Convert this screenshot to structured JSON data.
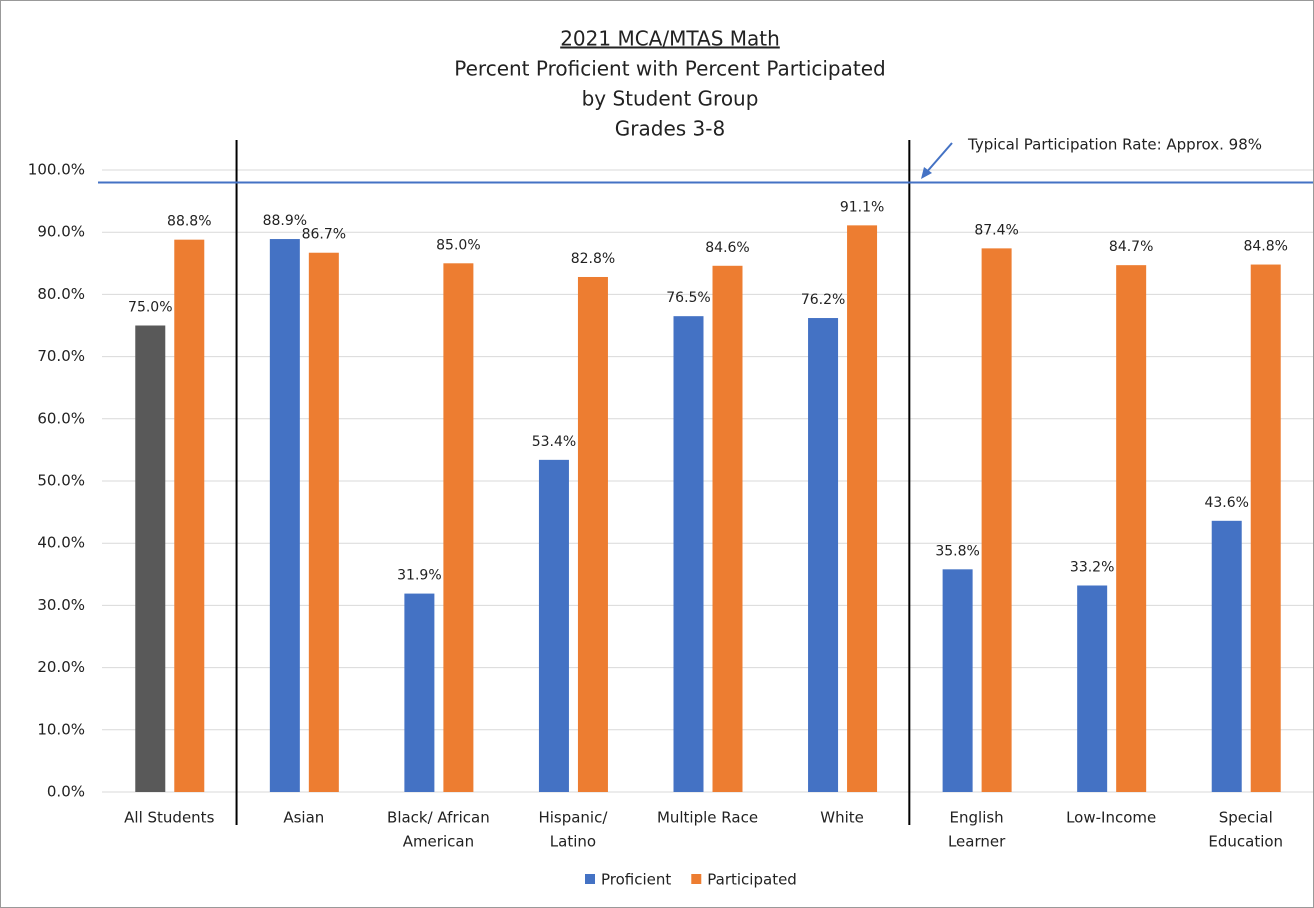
{
  "chart_data": {
    "type": "bar",
    "title": "2021 MCA/MTAS Math",
    "subtitle": [
      "Percent Proficient with Percent Participated",
      "by Student Group",
      "Grades 3-8"
    ],
    "categories": [
      [
        "All Students"
      ],
      [
        "Asian"
      ],
      [
        "Black/ African",
        "American"
      ],
      [
        "Hispanic/",
        "Latino"
      ],
      [
        "Multiple Race"
      ],
      [
        "White"
      ],
      [
        "English",
        "Learner"
      ],
      [
        "Low-Income"
      ],
      [
        "Special",
        "Education"
      ]
    ],
    "series": [
      {
        "name": "Proficient",
        "color": "#4472c4",
        "point_colors": [
          "#595959",
          "#4472c4",
          "#4472c4",
          "#4472c4",
          "#4472c4",
          "#4472c4",
          "#4472c4",
          "#4472c4",
          "#4472c4"
        ],
        "values": [
          75.0,
          88.9,
          31.9,
          53.4,
          76.5,
          76.2,
          35.8,
          33.2,
          43.6
        ],
        "value_labels": [
          "75.0%",
          "88.9%",
          "31.9%",
          "53.4%",
          "76.5%",
          "76.2%",
          "35.8%",
          "33.2%",
          "43.6%"
        ]
      },
      {
        "name": "Participated",
        "color": "#ed7d31",
        "values": [
          88.8,
          86.7,
          85.0,
          82.8,
          84.6,
          91.1,
          87.4,
          84.7,
          84.8
        ],
        "value_labels": [
          "88.8%",
          "86.7%",
          "85.0%",
          "82.8%",
          "84.6%",
          "91.1%",
          "87.4%",
          "84.7%",
          "84.8%"
        ]
      }
    ],
    "ylim": [
      0,
      100
    ],
    "yticks": [
      {
        "value": 0,
        "label": "0.0%"
      },
      {
        "value": 10,
        "label": "10.0%"
      },
      {
        "value": 20,
        "label": "20.0%"
      },
      {
        "value": 30,
        "label": "30.0%"
      },
      {
        "value": 40,
        "label": "40.0%"
      },
      {
        "value": 50,
        "label": "50.0%"
      },
      {
        "value": 60,
        "label": "60.0%"
      },
      {
        "value": 70,
        "label": "70.0%"
      },
      {
        "value": 80,
        "label": "80.0%"
      },
      {
        "value": 90,
        "label": "90.0%"
      },
      {
        "value": 100,
        "label": "100.0%"
      }
    ],
    "grid": true,
    "reference_line": {
      "value": 98,
      "label": "Typical Participation Rate: Approx. 98%",
      "color": "#4472c4"
    },
    "group_separators_after": [
      0,
      5
    ],
    "legend": "bottom"
  }
}
